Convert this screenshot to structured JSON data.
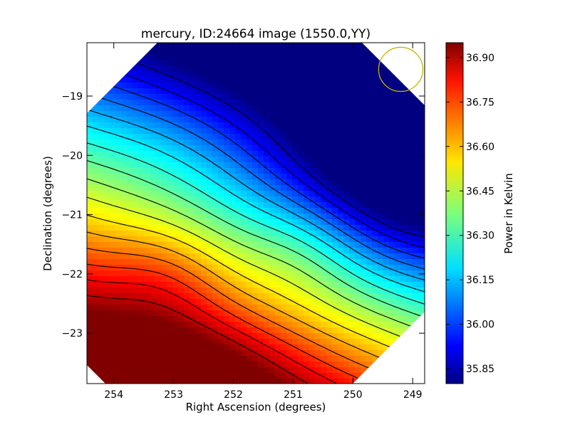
{
  "chart_data": {
    "type": "heatmap",
    "title": "mercury, ID:24664 image (1550.0,YY)",
    "xlabel": "Right Ascension (degrees)",
    "ylabel": "Declination (degrees)",
    "xlim": [
      254.45,
      248.8
    ],
    "ylim": [
      -23.85,
      -18.1
    ],
    "x_ticks": [
      254,
      253,
      252,
      251,
      250,
      249
    ],
    "x_tick_labels": [
      "254",
      "253",
      "252",
      "251",
      "250",
      "249"
    ],
    "y_ticks": [
      -19,
      -20,
      -21,
      -22,
      -23
    ],
    "y_tick_labels": [
      "−19",
      "−20",
      "−21",
      "−22",
      "−23"
    ],
    "colorbar": {
      "label": "Power in Kelvin",
      "vmin": 35.8,
      "vmax": 36.95,
      "ticks": [
        35.85,
        36.0,
        36.15,
        36.3,
        36.45,
        36.6,
        36.75,
        36.9
      ],
      "tick_labels": [
        "35.85",
        "36.00",
        "36.15",
        "36.30",
        "36.45",
        "36.60",
        "36.75",
        "36.90"
      ]
    },
    "beam_circle": {
      "center_ra": 249.2,
      "center_dec": -18.55,
      "radius_deg": 0.37
    },
    "colormap": "jet",
    "contour_count": 16,
    "gradient": "power decreases from south-east (RA 253, Dec -23.7, about 36.95 K) toward north (Dec -18.2, about 35.82 K)"
  }
}
